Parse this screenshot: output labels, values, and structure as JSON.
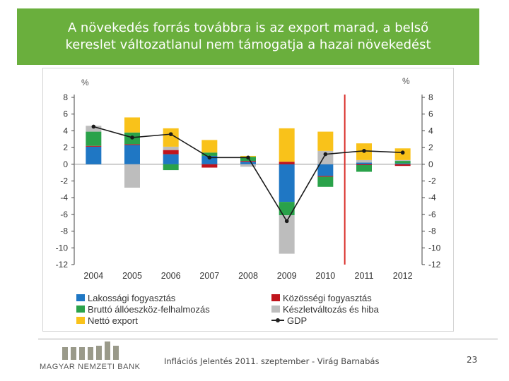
{
  "slide": {
    "title": "A növekedés forrás továbbra is az export marad, a belső\nkereslet változatlanul nem támogatja a hazai növekedést",
    "footer": "Inflációs Jelentés 2011. szeptember - Virág Barnabás",
    "page_number": "23",
    "logo_text": "MAGYAR NEMZETI BANK"
  },
  "chart_data": {
    "type": "bar",
    "stacked": true,
    "categories": [
      "2004",
      "2005",
      "2006",
      "2007",
      "2008",
      "2009",
      "2010",
      "2011",
      "2012"
    ],
    "ylim": [
      -12,
      8
    ],
    "yticks": [
      8,
      6,
      4,
      2,
      0,
      -2,
      -4,
      -6,
      -8,
      -10,
      -12
    ],
    "ylabel_left": "%",
    "ylabel_right": "%",
    "grid": false,
    "vertical_marker": {
      "between": [
        "2010",
        "2011"
      ],
      "color": "#d9302c"
    },
    "series": [
      {
        "name": "Lakossági fogyasztás",
        "color": "#1f77c4",
        "values": [
          2.1,
          2.3,
          1.2,
          1.0,
          0.3,
          -4.5,
          -1.4,
          0.2,
          0.1
        ]
      },
      {
        "name": "Közösségi fogyasztás",
        "color": "#c0141c",
        "values": [
          0.1,
          0.1,
          0.5,
          -0.4,
          0.1,
          0.3,
          -0.1,
          -0.1,
          -0.2
        ]
      },
      {
        "name": "Bruttó állóeszköz-felhalmozás",
        "color": "#2aa24a",
        "values": [
          1.7,
          1.4,
          -0.7,
          0.4,
          0.5,
          -1.6,
          -1.2,
          -0.8,
          0.3
        ]
      },
      {
        "name": "Készletváltozás és hiba",
        "color": "#bdbdbd",
        "values": [
          0.7,
          -2.8,
          0.4,
          0.0,
          -0.3,
          -4.6,
          1.6,
          0.3,
          0.1
        ]
      },
      {
        "name": "Nettó export",
        "color": "#f9c21a",
        "values": [
          0.0,
          1.8,
          2.2,
          1.5,
          0.1,
          4.0,
          2.3,
          2.0,
          1.4
        ]
      }
    ],
    "line": {
      "name": "GDP",
      "color": "#1a1a1a",
      "values": [
        4.5,
        3.2,
        3.6,
        0.8,
        0.8,
        -6.8,
        1.2,
        1.6,
        1.4
      ]
    },
    "legend": {
      "placement": "bottom",
      "columns": [
        [
          "Lakossági fogyasztás",
          "Bruttó állóeszköz-felhalmozás",
          "Nettó export"
        ],
        [
          "Közösségi fogyasztás",
          "Készletváltozás és hiba",
          "GDP"
        ]
      ]
    }
  }
}
